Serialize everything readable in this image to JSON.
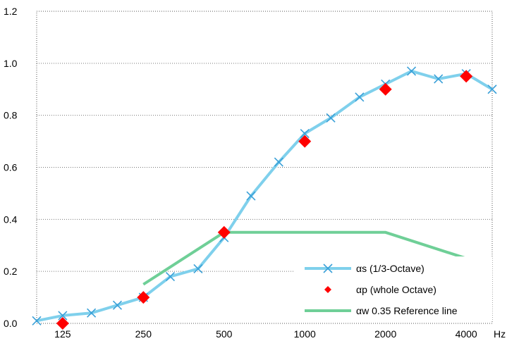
{
  "chart_data": {
    "type": "line",
    "title": "",
    "xlabel": "Hz",
    "ylabel": "",
    "ylim": [
      0,
      1.2
    ],
    "y_ticks": [
      "0.0",
      "0.2",
      "0.4",
      "0.6",
      "0.8",
      "1.0",
      "1.2"
    ],
    "x_tick_labels": [
      "125",
      "250",
      "500",
      "1000",
      "2000",
      "4000"
    ],
    "x_unit": "Hz",
    "grid": "horizontal dotted",
    "legend_position": "bottom-right",
    "series": [
      {
        "symbol": "αs",
        "name": " (1/3-Octave)",
        "color": "#7fd0ec",
        "marker": "x",
        "x": [
          100,
          125,
          160,
          200,
          250,
          315,
          400,
          500,
          630,
          800,
          1000,
          1250,
          1600,
          2000,
          2500,
          3150,
          4000,
          5000
        ],
        "values": [
          0.01,
          0.03,
          0.04,
          0.07,
          0.1,
          0.18,
          0.21,
          0.33,
          0.49,
          0.62,
          0.73,
          0.79,
          0.87,
          0.92,
          0.97,
          0.94,
          0.96,
          0.9
        ]
      },
      {
        "symbol": "αp",
        "name": " (whole Octave)",
        "color": "#ff0000",
        "marker": "diamond",
        "x": [
          125,
          250,
          500,
          1000,
          2000,
          4000
        ],
        "values": [
          0.0,
          0.1,
          0.35,
          0.7,
          0.9,
          0.95
        ]
      },
      {
        "symbol": "αw",
        "name": " 0.35 Reference line",
        "color": "#6fcf97",
        "marker": "none",
        "x": [
          250,
          500,
          2000,
          4000
        ],
        "values": [
          0.15,
          0.35,
          0.35,
          0.25
        ]
      }
    ]
  }
}
